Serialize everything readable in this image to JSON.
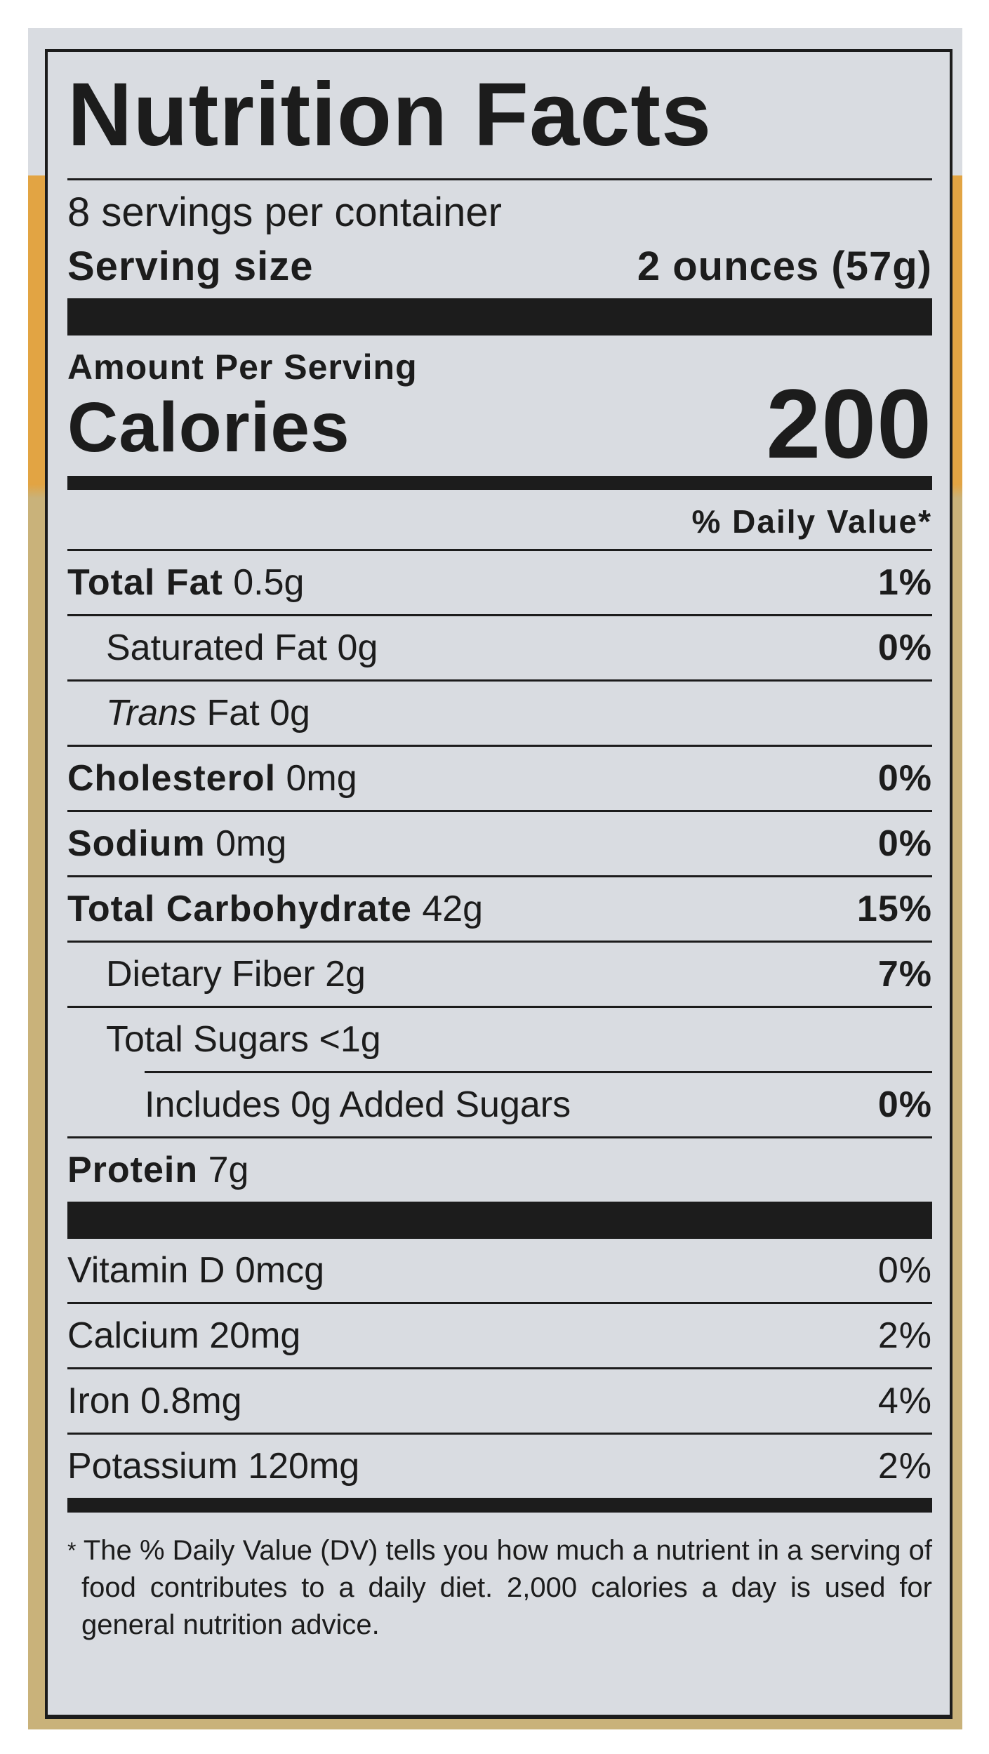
{
  "title": "Nutrition Facts",
  "servings_per_container": "8 servings per container",
  "serving_size": {
    "label": "Serving size",
    "value": "2 ounces (57g)"
  },
  "amount_per_serving": "Amount Per Serving",
  "calories": {
    "label": "Calories",
    "value": "200"
  },
  "daily_value_header": "% Daily Value*",
  "nutrients": [
    {
      "name": "Total Fat",
      "amount": "0.5g",
      "dv": "1%"
    },
    {
      "name": "Saturated Fat",
      "amount": "0g",
      "dv": "0%"
    },
    {
      "name": "Trans",
      "name_suffix": "Fat",
      "amount": "0g",
      "dv": ""
    },
    {
      "name": "Cholesterol",
      "amount": "0mg",
      "dv": "0%"
    },
    {
      "name": "Sodium",
      "amount": "0mg",
      "dv": "0%"
    },
    {
      "name": "Total Carbohydrate",
      "amount": "42g",
      "dv": "15%"
    },
    {
      "name": "Dietary Fiber",
      "amount": "2g",
      "dv": "7%"
    },
    {
      "name": "Total Sugars",
      "amount": "<1g",
      "dv": ""
    },
    {
      "name": "Includes 0g Added Sugars",
      "amount": "",
      "dv": "0%"
    },
    {
      "name": "Protein",
      "amount": "7g",
      "dv": ""
    }
  ],
  "vitamins": [
    {
      "name": "Vitamin D 0mcg",
      "dv": "0%"
    },
    {
      "name": "Calcium 20mg",
      "dv": "2%"
    },
    {
      "name": "Iron 0.8mg",
      "dv": "4%"
    },
    {
      "name": "Potassium 120mg",
      "dv": "2%"
    }
  ],
  "footnote": {
    "star": "*",
    "text": "The % Daily Value (DV) tells you how much a nutrient in a serving of food contributes to a daily diet. 2,000 calories a day is used for general nutrition advice."
  },
  "colors": {
    "label_bg": "#d9dce1",
    "ink": "#1c1c1c",
    "package_orange": "#e2a443",
    "package_tan": "#c9b27a"
  }
}
